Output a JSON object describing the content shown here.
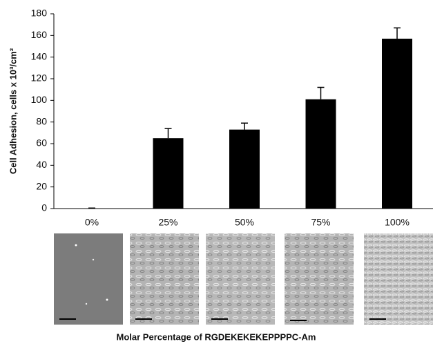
{
  "chart_data": {
    "type": "bar",
    "y_label": "Cell Adhesion, cells x 10³/cm²",
    "x_label": "Molar Percentage of  RGDEKEKEKEPPPPC-Am",
    "categories": [
      "0%",
      "25%",
      "50%",
      "75%",
      "100%"
    ],
    "values": [
      0,
      65,
      73,
      101,
      157
    ],
    "errors": [
      0.5,
      9,
      6,
      11,
      10
    ],
    "color": "#000000",
    "ylim": [
      0,
      180
    ],
    "yticks": [
      0,
      20,
      40,
      60,
      80,
      100,
      120,
      140,
      160,
      180
    ],
    "grid": false
  }
}
